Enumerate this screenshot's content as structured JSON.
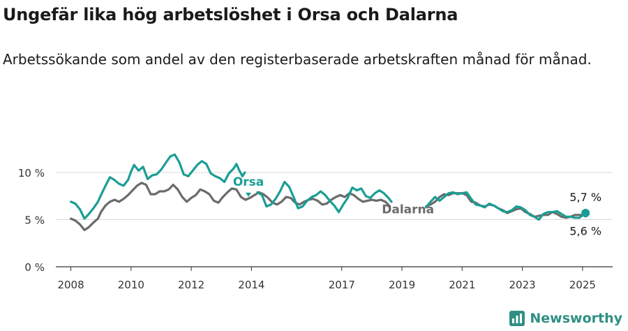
{
  "title": "Ungefär lika hög arbetslöshet i Orsa och Dalarna",
  "subtitle": "Arbetssökande som andel av den registerbaserade arbetskraften månad för månad.",
  "brand": "Newsworthy",
  "colors": {
    "orsa": "#1a9e94",
    "dalarna": "#6b6b6b",
    "grid": "#d9d9d9",
    "axis": "#333333",
    "brand": "#2f8f84"
  },
  "chart_data": {
    "type": "line",
    "xlim": [
      2007.5,
      2026.0
    ],
    "ylim": [
      0,
      12
    ],
    "y_ticks": [
      0,
      5,
      10
    ],
    "y_tick_labels": [
      "0 %",
      "5 %",
      "10 %"
    ],
    "x_ticks": [
      2008,
      2010,
      2012,
      2014,
      2017,
      2019,
      2021,
      2023,
      2025
    ],
    "x_tick_labels": [
      "2008",
      "2010",
      "2012",
      "2014",
      "2017",
      "2019",
      "2021",
      "2023",
      "2025"
    ],
    "grid": true,
    "series": [
      {
        "name": "Orsa",
        "color": "#1a9e94",
        "end_label": "5,7 %",
        "segments": [
          [
            [
              2008.0,
              6.9
            ],
            [
              2008.15,
              6.7
            ],
            [
              2008.3,
              6.1
            ],
            [
              2008.45,
              5.1
            ],
            [
              2008.6,
              5.6
            ],
            [
              2008.75,
              6.2
            ],
            [
              2008.9,
              6.9
            ],
            [
              2009.0,
              7.6
            ],
            [
              2009.15,
              8.6
            ],
            [
              2009.3,
              9.5
            ],
            [
              2009.45,
              9.2
            ],
            [
              2009.6,
              8.8
            ],
            [
              2009.75,
              8.6
            ],
            [
              2009.9,
              9.2
            ],
            [
              2010.0,
              10.1
            ],
            [
              2010.1,
              10.8
            ],
            [
              2010.25,
              10.2
            ],
            [
              2010.4,
              10.6
            ],
            [
              2010.55,
              9.3
            ],
            [
              2010.7,
              9.7
            ],
            [
              2010.85,
              9.8
            ],
            [
              2011.0,
              10.3
            ],
            [
              2011.15,
              11.0
            ],
            [
              2011.3,
              11.7
            ],
            [
              2011.45,
              11.9
            ],
            [
              2011.6,
              11.1
            ],
            [
              2011.75,
              9.8
            ],
            [
              2011.9,
              9.6
            ],
            [
              2012.05,
              10.2
            ],
            [
              2012.2,
              10.8
            ],
            [
              2012.35,
              11.2
            ],
            [
              2012.5,
              10.9
            ],
            [
              2012.65,
              9.9
            ],
            [
              2012.8,
              9.6
            ],
            [
              2012.95,
              9.4
            ],
            [
              2013.1,
              9.0
            ],
            [
              2013.25,
              9.9
            ],
            [
              2013.4,
              10.4
            ],
            [
              2013.5,
              10.9
            ],
            [
              2013.6,
              10.2
            ],
            [
              2013.7,
              9.6
            ],
            [
              2013.78,
              10.0
            ]
          ],
          [
            [
              2014.2,
              7.9
            ],
            [
              2014.35,
              7.6
            ],
            [
              2014.5,
              6.4
            ],
            [
              2014.65,
              6.6
            ],
            [
              2014.8,
              7.2
            ],
            [
              2014.95,
              8.0
            ],
            [
              2015.1,
              9.0
            ],
            [
              2015.25,
              8.5
            ],
            [
              2015.4,
              7.4
            ],
            [
              2015.55,
              6.2
            ],
            [
              2015.7,
              6.4
            ],
            [
              2015.85,
              7.0
            ],
            [
              2016.0,
              7.4
            ],
            [
              2016.15,
              7.6
            ],
            [
              2016.3,
              8.0
            ],
            [
              2016.45,
              7.6
            ],
            [
              2016.6,
              7.0
            ],
            [
              2016.75,
              6.5
            ],
            [
              2016.9,
              5.8
            ],
            [
              2017.05,
              6.6
            ],
            [
              2017.2,
              7.3
            ],
            [
              2017.35,
              8.4
            ],
            [
              2017.5,
              8.1
            ],
            [
              2017.65,
              8.3
            ],
            [
              2017.8,
              7.5
            ],
            [
              2017.95,
              7.3
            ],
            [
              2018.1,
              7.8
            ],
            [
              2018.25,
              8.1
            ],
            [
              2018.4,
              7.8
            ],
            [
              2018.55,
              7.3
            ],
            [
              2018.65,
              6.9
            ]
          ],
          [
            [
              2019.8,
              6.3
            ],
            [
              2019.95,
              6.9
            ],
            [
              2020.1,
              7.4
            ],
            [
              2020.25,
              7.0
            ],
            [
              2020.4,
              7.4
            ],
            [
              2020.55,
              7.8
            ],
            [
              2020.7,
              7.9
            ],
            [
              2020.85,
              7.7
            ],
            [
              2021.0,
              7.8
            ],
            [
              2021.15,
              7.9
            ],
            [
              2021.3,
              7.2
            ],
            [
              2021.45,
              6.6
            ],
            [
              2021.6,
              6.5
            ],
            [
              2021.75,
              6.3
            ],
            [
              2021.9,
              6.7
            ],
            [
              2022.05,
              6.5
            ],
            [
              2022.2,
              6.2
            ],
            [
              2022.35,
              5.9
            ],
            [
              2022.5,
              5.8
            ],
            [
              2022.65,
              6.0
            ],
            [
              2022.8,
              6.4
            ],
            [
              2022.95,
              6.3
            ],
            [
              2023.1,
              6.0
            ],
            [
              2023.25,
              5.5
            ],
            [
              2023.4,
              5.3
            ],
            [
              2023.55,
              5.0
            ],
            [
              2023.7,
              5.6
            ],
            [
              2023.85,
              5.8
            ],
            [
              2024.0,
              5.8
            ],
            [
              2024.15,
              5.9
            ],
            [
              2024.3,
              5.6
            ],
            [
              2024.45,
              5.3
            ],
            [
              2024.6,
              5.3
            ],
            [
              2024.75,
              5.2
            ],
            [
              2024.9,
              5.2
            ],
            [
              2025.0,
              5.5
            ],
            [
              2025.1,
              5.7
            ]
          ]
        ]
      },
      {
        "name": "Dalarna",
        "color": "#6b6b6b",
        "end_label": "5,6 %",
        "segments": [
          [
            [
              2008.0,
              5.1
            ],
            [
              2008.15,
              4.9
            ],
            [
              2008.3,
              4.5
            ],
            [
              2008.45,
              3.9
            ],
            [
              2008.6,
              4.2
            ],
            [
              2008.75,
              4.7
            ],
            [
              2008.9,
              5.1
            ],
            [
              2009.0,
              5.8
            ],
            [
              2009.15,
              6.5
            ],
            [
              2009.3,
              6.9
            ],
            [
              2009.45,
              7.1
            ],
            [
              2009.6,
              6.9
            ],
            [
              2009.75,
              7.2
            ],
            [
              2009.9,
              7.6
            ],
            [
              2010.05,
              8.1
            ],
            [
              2010.2,
              8.6
            ],
            [
              2010.35,
              8.9
            ],
            [
              2010.5,
              8.7
            ],
            [
              2010.65,
              7.7
            ],
            [
              2010.8,
              7.7
            ],
            [
              2010.95,
              8.0
            ],
            [
              2011.1,
              8.0
            ],
            [
              2011.25,
              8.2
            ],
            [
              2011.4,
              8.7
            ],
            [
              2011.55,
              8.2
            ],
            [
              2011.7,
              7.4
            ],
            [
              2011.85,
              6.9
            ],
            [
              2012.0,
              7.3
            ],
            [
              2012.15,
              7.6
            ],
            [
              2012.3,
              8.2
            ],
            [
              2012.45,
              8.0
            ],
            [
              2012.6,
              7.7
            ],
            [
              2012.75,
              7.0
            ],
            [
              2012.9,
              6.8
            ],
            [
              2013.05,
              7.4
            ],
            [
              2013.2,
              7.9
            ],
            [
              2013.35,
              8.3
            ],
            [
              2013.5,
              8.2
            ],
            [
              2013.65,
              7.4
            ],
            [
              2013.8,
              7.1
            ],
            [
              2013.95,
              7.3
            ],
            [
              2014.1,
              7.6
            ],
            [
              2014.25,
              7.9
            ],
            [
              2014.4,
              7.7
            ],
            [
              2014.55,
              7.3
            ],
            [
              2014.7,
              6.8
            ],
            [
              2014.85,
              6.6
            ],
            [
              2015.0,
              6.9
            ],
            [
              2015.15,
              7.4
            ],
            [
              2015.3,
              7.3
            ],
            [
              2015.45,
              6.8
            ],
            [
              2015.6,
              6.6
            ],
            [
              2015.75,
              6.9
            ],
            [
              2015.9,
              7.1
            ],
            [
              2016.05,
              7.2
            ],
            [
              2016.2,
              7.0
            ],
            [
              2016.35,
              6.6
            ],
            [
              2016.5,
              6.7
            ],
            [
              2016.65,
              7.1
            ],
            [
              2016.8,
              7.4
            ],
            [
              2016.95,
              7.6
            ],
            [
              2017.1,
              7.4
            ],
            [
              2017.25,
              7.8
            ],
            [
              2017.4,
              7.6
            ],
            [
              2017.55,
              7.2
            ],
            [
              2017.7,
              6.9
            ],
            [
              2017.85,
              7.0
            ],
            [
              2018.0,
              7.1
            ],
            [
              2018.15,
              7.0
            ],
            [
              2018.3,
              7.1
            ],
            [
              2018.45,
              6.9
            ],
            [
              2018.6,
              6.4
            ]
          ],
          [
            [
              2019.8,
              6.4
            ],
            [
              2019.95,
              6.6
            ],
            [
              2020.1,
              6.9
            ],
            [
              2020.25,
              7.4
            ],
            [
              2020.4,
              7.7
            ],
            [
              2020.55,
              7.6
            ],
            [
              2020.7,
              7.8
            ],
            [
              2020.85,
              7.8
            ],
            [
              2021.0,
              7.8
            ],
            [
              2021.15,
              7.6
            ],
            [
              2021.3,
              6.9
            ],
            [
              2021.45,
              6.8
            ],
            [
              2021.6,
              6.5
            ],
            [
              2021.75,
              6.4
            ],
            [
              2021.9,
              6.6
            ],
            [
              2022.05,
              6.5
            ],
            [
              2022.2,
              6.2
            ],
            [
              2022.35,
              6.0
            ],
            [
              2022.5,
              5.7
            ],
            [
              2022.65,
              5.9
            ],
            [
              2022.8,
              6.1
            ],
            [
              2022.95,
              6.2
            ],
            [
              2023.1,
              5.8
            ],
            [
              2023.25,
              5.6
            ],
            [
              2023.4,
              5.3
            ],
            [
              2023.55,
              5.4
            ],
            [
              2023.7,
              5.5
            ],
            [
              2023.85,
              5.5
            ],
            [
              2024.0,
              5.8
            ],
            [
              2024.15,
              5.6
            ],
            [
              2024.3,
              5.3
            ],
            [
              2024.45,
              5.2
            ],
            [
              2024.6,
              5.3
            ],
            [
              2024.75,
              5.5
            ],
            [
              2024.9,
              5.5
            ],
            [
              2025.0,
              5.5
            ],
            [
              2025.1,
              5.6
            ]
          ]
        ]
      }
    ],
    "labels": [
      {
        "text": "Orsa",
        "series": "Orsa"
      },
      {
        "text": "Dalarna",
        "series": "Dalarna"
      }
    ]
  }
}
